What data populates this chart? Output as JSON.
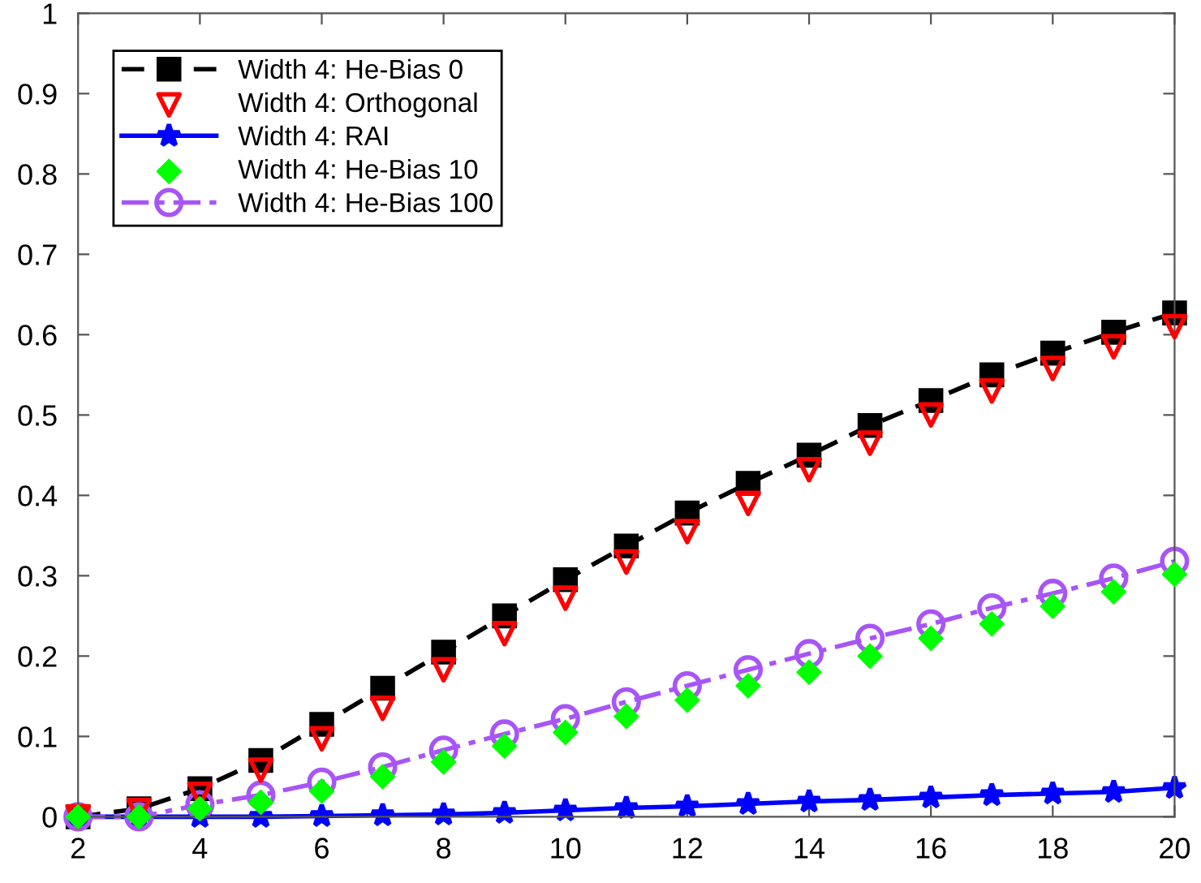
{
  "chart_data": {
    "type": "line",
    "x": [
      2,
      3,
      4,
      5,
      6,
      7,
      8,
      9,
      10,
      11,
      12,
      13,
      14,
      15,
      16,
      17,
      18,
      19,
      20
    ],
    "series": [
      {
        "name": "Width 4: He-Bias 0",
        "color": "#000000",
        "marker": "square",
        "line_style": "dashed",
        "values": [
          0,
          0.01,
          0.035,
          0.07,
          0.115,
          0.16,
          0.205,
          0.25,
          0.295,
          0.337,
          0.378,
          0.415,
          0.45,
          0.487,
          0.518,
          0.55,
          0.577,
          0.603,
          0.627
        ]
      },
      {
        "name": "Width 4: Orthogonal",
        "color": "#ff0000",
        "type": "scatter",
        "marker": "triangle",
        "values": [
          0,
          0.008,
          0.028,
          0.058,
          0.097,
          0.135,
          0.183,
          0.228,
          0.272,
          0.317,
          0.355,
          0.39,
          0.432,
          0.465,
          0.5,
          0.53,
          0.558,
          0.585,
          0.61
        ]
      },
      {
        "name": "Width 4: RAI",
        "color": "#0000ff",
        "marker": "star",
        "line_style": "solid",
        "values": [
          0,
          0,
          0,
          0,
          0.001,
          0.002,
          0.003,
          0.005,
          0.008,
          0.011,
          0.013,
          0.016,
          0.019,
          0.021,
          0.024,
          0.027,
          0.029,
          0.031,
          0.036
        ]
      },
      {
        "name": "Width 4: He-Bias 10",
        "color": "#00ff00",
        "type": "scatter",
        "marker": "diamond",
        "values": [
          0,
          0,
          0.01,
          0.018,
          0.032,
          0.05,
          0.068,
          0.088,
          0.105,
          0.125,
          0.145,
          0.163,
          0.18,
          0.2,
          0.222,
          0.24,
          0.262,
          0.28,
          0.302
        ]
      },
      {
        "name": "Width 4: He-Bias 100",
        "color": "#a855f7",
        "marker": "circle",
        "line_style": "dashdot",
        "values": [
          0,
          0,
          0.015,
          0.027,
          0.043,
          0.062,
          0.083,
          0.103,
          0.122,
          0.143,
          0.163,
          0.183,
          0.203,
          0.222,
          0.24,
          0.26,
          0.278,
          0.297,
          0.318
        ]
      }
    ],
    "xlim": [
      2,
      20
    ],
    "ylim": [
      0,
      1
    ],
    "xticks": [
      2,
      4,
      6,
      8,
      10,
      12,
      14,
      16,
      18,
      20
    ],
    "yticks": [
      0,
      0.1,
      0.2,
      0.3,
      0.4,
      0.5,
      0.6,
      0.7,
      0.8,
      0.9,
      1
    ],
    "grid": false,
    "legend": "top left"
  }
}
